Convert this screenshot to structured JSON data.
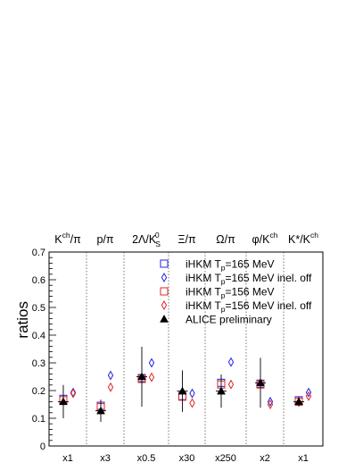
{
  "chart_data": {
    "type": "scatter",
    "ylabel": "ratios",
    "ylim": [
      0,
      0.7
    ],
    "yticks": [
      "0",
      "0.1",
      "0.2",
      "0.3",
      "0.4",
      "0.5",
      "0.6",
      "0.7"
    ],
    "grid": false,
    "legend_position": "top-right",
    "categories": [
      {
        "label": "K",
        "label_sup": "ch",
        "label_tail": "/π",
        "scale": "x1"
      },
      {
        "label": "p/π",
        "scale": "x3"
      },
      {
        "label": "2Λ/K",
        "label_sup": "0",
        "label_sub": "S",
        "scale": "x0.5"
      },
      {
        "label": "Ξ/π",
        "scale": "x30"
      },
      {
        "label": "Ω/π",
        "scale": "x250"
      },
      {
        "label": "φ/K",
        "label_sup": "ch",
        "scale": "x2"
      },
      {
        "label": "K*/K",
        "label_sup": "ch",
        "scale": "x1"
      }
    ],
    "series": [
      {
        "name": "iHKM T",
        "name_sub": "p",
        "name_tail": "=165 MeV",
        "marker": "open-square",
        "color": "#2424e0",
        "values": [
          0.17,
          0.145,
          0.245,
          0.18,
          0.228,
          0.225,
          0.165
        ]
      },
      {
        "name": "iHKM T",
        "name_sub": "p",
        "name_tail": "=165 MeV inel. off",
        "marker": "open-diamond",
        "color": "#2424e0",
        "values": [
          0.193,
          0.255,
          0.3,
          0.19,
          0.303,
          0.16,
          0.193
        ]
      },
      {
        "name": "iHKM T",
        "name_sub": "p",
        "name_tail": "=156 MeV",
        "marker": "open-square",
        "color": "#e02424",
        "values": [
          0.165,
          0.14,
          0.242,
          0.178,
          0.222,
          0.222,
          0.16
        ]
      },
      {
        "name": "iHKM T",
        "name_sub": "p",
        "name_tail": "=156 MeV inel. off",
        "marker": "open-diamond",
        "color": "#e02424",
        "values": [
          0.19,
          0.212,
          0.248,
          0.155,
          0.222,
          0.15,
          0.18
        ]
      },
      {
        "name": "ALICE preliminary",
        "marker": "filled-triangle",
        "color": "#000000",
        "values": [
          0.16,
          0.127,
          0.25,
          0.198,
          0.198,
          0.228,
          0.16
        ],
        "errors": [
          0.06,
          0.04,
          0.108,
          0.075,
          0.06,
          0.09,
          0.018
        ]
      }
    ]
  }
}
